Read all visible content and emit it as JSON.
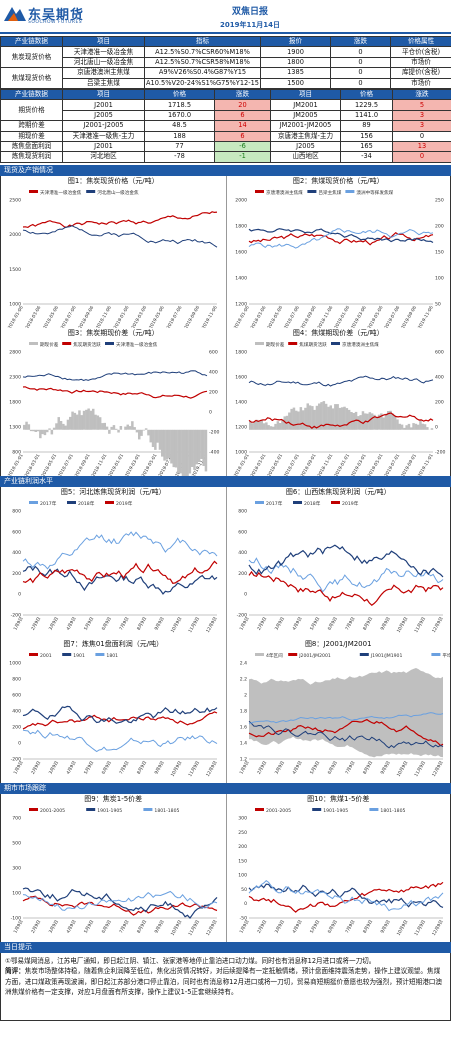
{
  "header": {
    "logo_cn": "东吴期货",
    "logo_en": "SOOCHOW  FUTURES",
    "title": "双焦日报",
    "date": "2019年11月14日"
  },
  "spot_table": {
    "headers": [
      "产业链数据",
      "项目",
      "指标",
      "报价",
      "涨跌",
      "价格属性"
    ],
    "groups": [
      {
        "label": "焦炭现货价格",
        "rows": [
          {
            "item": "天津港准一级冶金焦",
            "spec": "A12.5%S0.7%CSR60%M18%",
            "price": "1900",
            "chg": "0",
            "attr": "平仓价(含税)"
          },
          {
            "item": "河北唐山一级冶金焦",
            "spec": "A12.5%S0.7%CSR58%M18%",
            "price": "1800",
            "chg": "0",
            "attr": "市场价"
          }
        ]
      },
      {
        "label": "焦煤现货价格",
        "rows": [
          {
            "item": "京唐港澳洲主焦煤",
            "spec": "A9%V26%S0.4%G87%Y15",
            "price": "1385",
            "chg": "0",
            "attr": "库提价(含税)"
          },
          {
            "item": "吕梁主焦煤",
            "spec": "A10.5%V20-24%S1%G75%Y12-15",
            "price": "1500",
            "chg": "0",
            "attr": "市场价"
          }
        ]
      }
    ]
  },
  "futures_table": {
    "headers": [
      "产业链数据",
      "项目",
      "价格",
      "涨跌",
      "项目",
      "价格",
      "涨跌"
    ],
    "rows": [
      {
        "label": "期货价格",
        "c1": "J2001",
        "c2": "1718.5",
        "c3": "20",
        "c3s": "red",
        "c4": "JM2001",
        "c5": "1229.5",
        "c6": "5",
        "c6s": "red"
      },
      {
        "label": "",
        "c1": "J2005",
        "c2": "1670.0",
        "c3": "6",
        "c3s": "red",
        "c4": "JM2005",
        "c5": "1141.0",
        "c6": "3",
        "c6s": "red"
      },
      {
        "label": "跨期价差",
        "c1": "J2001-J2005",
        "c2": "48.5",
        "c3": "14",
        "c3s": "red",
        "c4": "JM2001-JM2005",
        "c5": "89",
        "c6": "3",
        "c6s": "red"
      },
      {
        "label": "期现价差",
        "c1": "天津港准一级焦-主力",
        "c2": "188",
        "c3": "6",
        "c3s": "red",
        "c4": "京唐港主焦煤-主力",
        "c5": "156",
        "c6": "0",
        "c6s": ""
      },
      {
        "label": "炼焦盘面利润",
        "c1": "J2001",
        "c2": "77",
        "c3": "-6",
        "c3s": "green",
        "c4": "J2005",
        "c5": "165",
        "c6": "13",
        "c6s": "red"
      },
      {
        "label": "炼焦现货利润",
        "c1": "河北地区",
        "c2": "-78",
        "c3": "-1",
        "c3s": "green",
        "c4": "山西地区",
        "c5": "-34",
        "c6": "0",
        "c6s": "red"
      }
    ]
  },
  "sections": {
    "s1": "现货及产销情况",
    "s2": "产业链利润水平",
    "s3": "期市市场跟踪",
    "s4": "当日提示"
  },
  "charts": {
    "c1": {
      "title": "图1：焦炭现货价格（元/吨）",
      "legend": [
        "天津港准一级冶金焦",
        "河北唐山一级冶金焦"
      ],
      "yticks": [
        "2500",
        "2000",
        "1500",
        "1000"
      ]
    },
    "c2": {
      "title": "图2：焦煤现货价格（元/吨）",
      "legend": [
        "京唐港澳洲主焦煤",
        "吕梁主焦煤",
        "澳洲中等挥发焦煤"
      ],
      "yticks": [
        "2000",
        "1800",
        "1600",
        "1400",
        "1200"
      ],
      "yticks2": [
        "250",
        "200",
        "150",
        "100",
        "50"
      ]
    },
    "c3": {
      "title": "图3：焦炭期现价差（元/吨）",
      "legend": [
        "期现价差",
        "焦炭期货活跃",
        "天津港准一级冶金焦"
      ],
      "yticks": [
        "2800",
        "2300",
        "1800",
        "1300",
        "800"
      ],
      "yticks2": [
        "600",
        "400",
        "200",
        "0",
        "-200",
        "-400"
      ]
    },
    "c4": {
      "title": "图4：焦煤期现价差（元/吨）",
      "legend": [
        "期现价差",
        "焦煤期货活跃",
        "京唐港澳洲主焦煤"
      ],
      "yticks": [
        "1800",
        "1600",
        "1400",
        "1200",
        "1000"
      ],
      "yticks2": [
        "600",
        "400",
        "200",
        "0",
        "-200"
      ]
    },
    "c5": {
      "title": "图5：河北炼焦现货利润（元/吨）",
      "legend": [
        "2017年",
        "2018年",
        "2019年"
      ],
      "yticks": [
        "800",
        "600",
        "400",
        "200",
        "0",
        "-200"
      ]
    },
    "c6": {
      "title": "图6：山西炼焦现货利润（元/吨）",
      "legend": [
        "2017年",
        "2018年",
        "2019年"
      ],
      "yticks": [
        "800",
        "600",
        "400",
        "200",
        "0",
        "-200"
      ]
    },
    "c7": {
      "title": "图7：炼焦01盘面利润（元/吨）",
      "legend": [
        "2001",
        "1901",
        "1801"
      ],
      "yticks": [
        "1000",
        "800",
        "600",
        "400",
        "200",
        "0",
        "-200"
      ]
    },
    "c8": {
      "title": "图8：J2001/JM2001",
      "legend": [
        "4年区间",
        "J2001/JM2001",
        "J1901/JM1901",
        "平均值"
      ],
      "yticks": [
        "2.4",
        "2.2",
        "2",
        "1.8",
        "1.6",
        "1.4",
        "1.2"
      ]
    },
    "c9": {
      "title": "图9：焦炭1-5价差",
      "legend": [
        "2001-2005",
        "1901-1905",
        "1801-1805"
      ],
      "yticks": [
        "700",
        "500",
        "300",
        "100",
        "-100"
      ]
    },
    "c10": {
      "title": "图10：焦煤1-5价差",
      "legend": [
        "2001-2005",
        "1901-1905",
        "1801-1805"
      ],
      "yticks": [
        "300",
        "250",
        "200",
        "150",
        "100",
        "50",
        "0",
        "-50"
      ]
    }
  },
  "date_ticks_a": [
    "2018-01-06",
    "2018-03-06",
    "2018-05-06",
    "2018-07-06",
    "2018-09-06",
    "2018-11-06",
    "2019-01-06",
    "2019-03-06",
    "2019-05-06",
    "2019-07-06",
    "2019-09-06",
    "2019-11-06"
  ],
  "date_ticks_b": [
    "2018-01-01",
    "2018-03-01",
    "2018-05-01",
    "2018-07-01",
    "2018-09-01",
    "2018-11-01",
    "2019-01-01",
    "2019-03-01",
    "2019-05-01",
    "2019-07-01",
    "2019-09-01",
    "2019-11-01"
  ],
  "date_ticks_c": [
    "1月9日",
    "2月9日",
    "3月9日",
    "4月9日",
    "5月9日",
    "6月9日",
    "7月9日",
    "8月9日",
    "9月9日",
    "10月9日",
    "11月9日",
    "12月9日"
  ],
  "tips": {
    "p1": "①鄂易煤网消息，江苏电厂通知，即日起江阴、镇江、张家港等地停止靠泊进口动力煤。同时也有消息称12月进口或将一刀切。",
    "p2_label": "简评：",
    "p2": "焦炭市场整体持稳，随着焦企利润降至低位，焦化出货情况转好，对后续提降有一定抵触情绪，预计盘面维持震荡走势，操作上建议观望。焦煤方面，进口煤政策再现波澜，即日起江苏部分港口停止靠泊，同时也有消息称12月进口或将一刀切，贸易商短期挺价意愿也较为强烈，预计短期港口澳洲焦煤价格有一定支撑，对应1月盘面有所支撑，操作上建议1-5正套继续持有。"
  },
  "colors": {
    "brand": "#1f5aa6",
    "red": "#c00000",
    "navy": "#1f3f7a",
    "lightblue": "#6aa0e0",
    "gray": "#bfbfbf"
  }
}
